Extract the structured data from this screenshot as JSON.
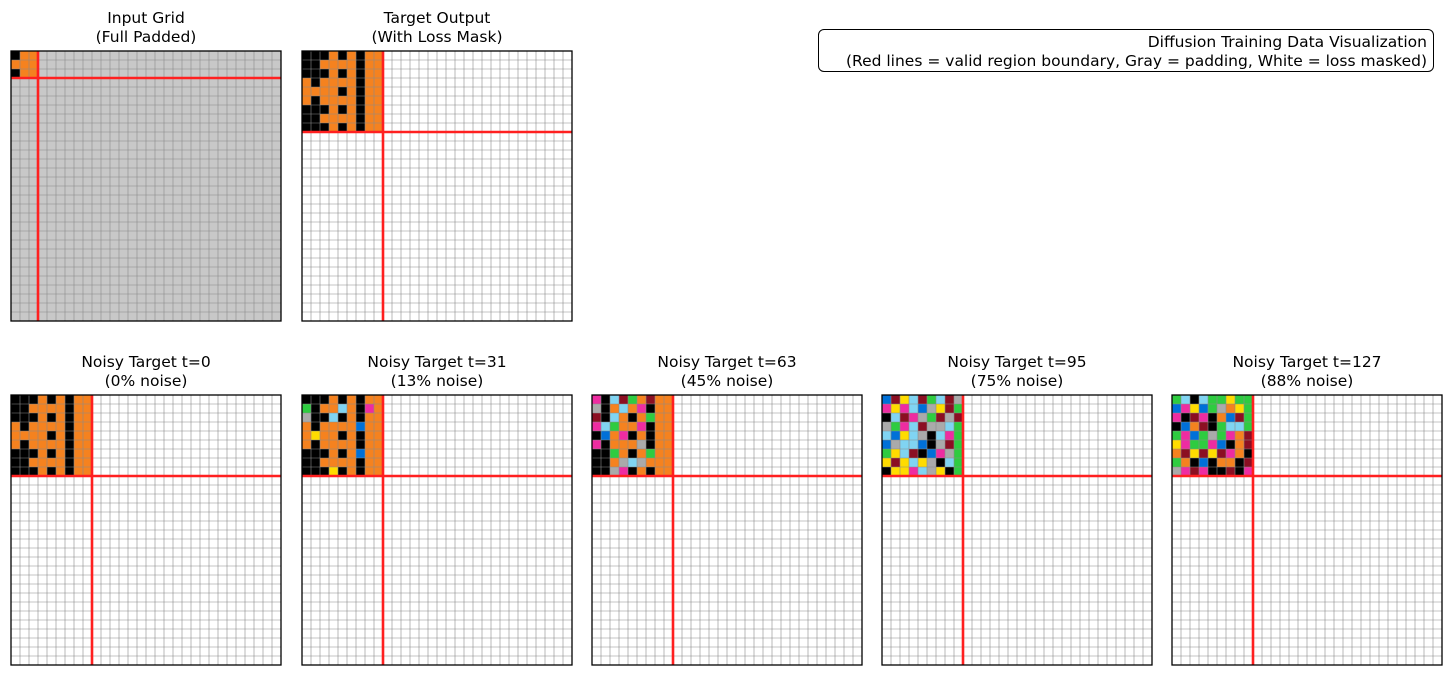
{
  "legend": {
    "line1": "Diffusion Training Data Visualization",
    "line2": "(Red lines = valid region boundary, Gray = padding, White = loss masked)"
  },
  "colors": {
    "valid_boundary": "#ff2020",
    "padding": "#c8c8c8",
    "loss_masked": "#ffffff",
    "gridline": "#8a8a8a",
    "frame": "#000000"
  },
  "palette": {
    "K": "#000000",
    "O": "#f5821f",
    "G": "#aaaaaa",
    "R": "#8b0f22",
    "M": "#ee2ca1",
    "B": "#0070d8",
    "C": "#80d4f2",
    "Y": "#ffdc00",
    "N": "#2ecc40",
    "W": "#ffffff"
  },
  "grid_size": 30,
  "panels": [
    {
      "title": "Input Grid\n(Full Padded)",
      "background": "padding",
      "valid_rows": 3,
      "valid_cols": 3,
      "cells": [
        "KOO",
        "OOO",
        "KOO"
      ]
    },
    {
      "title": "Target Output\n(With Loss Mask)",
      "background": "loss_masked",
      "valid_rows": 9,
      "valid_cols": 9,
      "cells": [
        "KKKOKOKOO",
        "KKOOOOKOO",
        "KKKOKOKOO",
        "OKOOOOKOO",
        "OOOOKOKOO",
        "OKOOOOKOO",
        "KKKOKOKOO",
        "KKOOOOKOO",
        "KKKOKOKOO"
      ]
    },
    {
      "title": "Noisy Target t=0\n(0% noise)",
      "background": "loss_masked",
      "valid_rows": 9,
      "valid_cols": 9,
      "cells": [
        "KKKOKOKOO",
        "KKOOOOKOO",
        "KKKOKOKOO",
        "OKOOOOKOO",
        "OOOOKOKOO",
        "OKOOOOKOO",
        "KKKOKOKOO",
        "KKOOOOKOO",
        "KKKOKOKOO"
      ]
    },
    {
      "title": "Noisy Target t=31\n(13% noise)",
      "background": "loss_masked",
      "valid_rows": 9,
      "valid_cols": 9,
      "cells": [
        "KKKOKOKOO",
        "NKOOCOKMO",
        "GKKCKOKOO",
        "OKOOOOBOO",
        "OYOOKOKOO",
        "OKOOOOKOO",
        "KKKOKOBOO",
        "KKOOOOKOO",
        "KKKYKOKOO"
      ]
    },
    {
      "title": "Noisy Target t=63\n(45% noise)",
      "background": "loss_masked",
      "valid_rows": 9,
      "valid_cols": 9,
      "cells": [
        "MKCRNOROO",
        "GKOCOMKOO",
        "RKCOKONOO",
        "MCNOOMKOO",
        "KBOMKOKOO",
        "MKOOOGKOO",
        "KKNOKONOO",
        "KKOGCGOOO",
        "KKGMKOKOO"
      ]
    },
    {
      "title": "Noisy Target t=95\n(75% noise)",
      "background": "loss_masked",
      "valid_rows": 9,
      "valid_cols": 9,
      "cells": [
        "BRYCRNCRG",
        "MYMCBGYRN",
        "KCRMGNRGR",
        "GNMCRGGCN",
        "CBYCGKCMN",
        "BGCCBKGRN",
        "NYCRKBMGN",
        "YRYCYGKCN",
        "KYYMCGYKN"
      ]
    },
    {
      "title": "Noisy Target t=127\n(88% noise)",
      "background": "loss_masked",
      "valid_rows": 9,
      "valid_cols": 9,
      "cells": [
        "NCKCNNYNN",
        "BMYBNGOYN",
        "MKRMKOBRN",
        "KBORKNCCN",
        "NMBNGNMOR",
        "YMNNMBKOR",
        "ORYRYRMOK",
        "NOKBKOOKR",
        "GMRMKKRKM"
      ]
    }
  ]
}
